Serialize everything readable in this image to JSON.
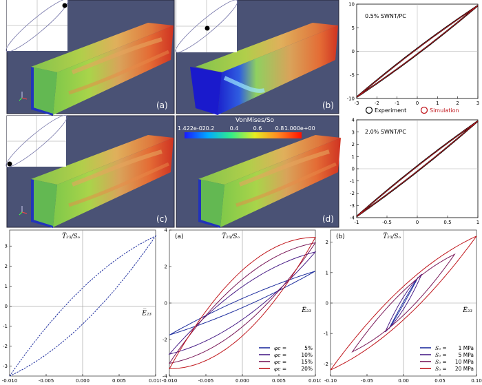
{
  "fem_panels": [
    {
      "label": "(a)",
      "marker": "top-right"
    },
    {
      "label": "(b)",
      "marker": "center"
    },
    {
      "label": "(c)",
      "marker": "bottom-left"
    },
    {
      "label": "(d)",
      "marker": "none"
    }
  ],
  "colorbar": {
    "title": "VonMises/So",
    "ticks": [
      "1.422e-02",
      "0.2",
      "0.4",
      "0.6",
      "0.8",
      "1.000e+00"
    ],
    "colors": [
      "#1a1aff",
      "#00aaff",
      "#33ee88",
      "#e6ee22",
      "#ff8822",
      "#ff1100"
    ]
  },
  "colors": {
    "background": "#4a5275",
    "experiment": "#111111",
    "simulation": "#c0161c",
    "dark_blue": "#1f2f9f",
    "red": "#c0161c"
  },
  "chart_data": [
    {
      "id": "swnt-0.5",
      "type": "line",
      "title": "0.5% SWNT/PC",
      "xlim": [
        -3,
        3
      ],
      "ylim": [
        -10,
        10
      ],
      "xticks": [
        "-3",
        "-2",
        "-1",
        "0",
        "1",
        "2",
        "3"
      ],
      "yticks": [
        "10",
        "5",
        "0",
        "-5",
        "-10"
      ],
      "legend": [
        "Experiment",
        "Simulation"
      ],
      "legend_placement": "bottom",
      "series": [
        {
          "name": "Experiment",
          "loop": {
            "amp_x": 3,
            "amp_y": 9.7,
            "width": 0.6
          }
        },
        {
          "name": "Simulation",
          "loop": {
            "amp_x": 3,
            "amp_y": 9.7,
            "width": 0.55
          }
        }
      ]
    },
    {
      "id": "swnt-2.0",
      "type": "line",
      "title": "2.0% SWNT/PC",
      "xlim": [
        -1,
        1
      ],
      "ylim": [
        -4,
        4
      ],
      "xticks": [
        "-1",
        "-0.5",
        "0",
        "0.5",
        "1"
      ],
      "yticks": [
        "4",
        "3",
        "2",
        "1",
        "0",
        "-1",
        "-2",
        "-3",
        "-4"
      ],
      "series": [
        {
          "name": "Experiment",
          "loop": {
            "amp_x": 1,
            "amp_y": 3.9,
            "width": 0.22
          }
        },
        {
          "name": "Simulation",
          "loop": {
            "amp_x": 1,
            "amp_y": 3.9,
            "width": 0.2
          }
        }
      ]
    },
    {
      "id": "hysteresis-single",
      "type": "line",
      "xlabel": "E̅₂₃",
      "ylabel": "T̅₂₃/Sₒ",
      "xlim": [
        -0.01,
        0.01
      ],
      "ylim": [
        -3.5,
        3.8
      ],
      "xticks": [
        "-0.010",
        "-0.005",
        "0.000",
        "0.005",
        "0.010"
      ],
      "yticks": [
        "3",
        "2",
        "1",
        "0",
        "-1",
        "-2",
        "-3"
      ],
      "series": [
        {
          "name": "",
          "loop": {
            "amp_x": 0.01,
            "amp_y": 3.5,
            "width": 0.9
          }
        }
      ]
    },
    {
      "id": "hysteresis-phi",
      "type": "line",
      "panel_label": "(a)",
      "xlabel": "E̅₂₃",
      "ylabel": "T̅₂₃/Sₒ",
      "xlim": [
        -0.01,
        0.01
      ],
      "ylim": [
        -4,
        4
      ],
      "xticks": [
        "-0.010",
        "-0.005",
        "0.000",
        "0.005",
        "0.010"
      ],
      "yticks": [
        "4",
        "2",
        "0",
        "-2",
        "-4"
      ],
      "legend_placement": "bottom-right",
      "series": [
        {
          "name": "φc = 5%",
          "legend_var": "φc",
          "legend_value": "5%",
          "color": "#1f2f9f",
          "loop": {
            "amp_x": 0.01,
            "amp_y": 1.75,
            "width": 0.25
          }
        },
        {
          "name": "φc = 10%",
          "legend_var": "φc",
          "legend_value": "10%",
          "color": "#4a1f88",
          "loop": {
            "amp_x": 0.01,
            "amp_y": 2.8,
            "width": 0.9
          }
        },
        {
          "name": "φc = 15%",
          "legend_var": "φc",
          "legend_value": "15%",
          "color": "#7a1a5a",
          "loop": {
            "amp_x": 0.01,
            "amp_y": 3.3,
            "width": 1.3
          }
        },
        {
          "name": "φc = 20%",
          "legend_var": "φc",
          "legend_value": "20%",
          "color": "#c0161c",
          "loop": {
            "amp_x": 0.01,
            "amp_y": 3.6,
            "width": 1.8
          }
        }
      ]
    },
    {
      "id": "hysteresis-so",
      "type": "line",
      "panel_label": "(b)",
      "xlabel": "E̅₂₃",
      "ylabel": "T̅₂₃/Sₒ",
      "xlim": [
        -0.1,
        0.1
      ],
      "ylim": [
        -2.4,
        2.4
      ],
      "xticks": [
        "-0.10",
        "-0.05",
        "0.00",
        "0.05",
        "0.10"
      ],
      "yticks": [
        "2",
        "1",
        "0",
        "-1",
        "-2"
      ],
      "legend_placement": "bottom-right",
      "series": [
        {
          "name": "Sₒ = 1 MPa",
          "legend_var": "Sₒ",
          "legend_value": "1 MPa",
          "color": "#1f2f9f",
          "loop": {
            "amp_x": 0.02,
            "amp_y": 0.85,
            "width": 0.04
          }
        },
        {
          "name": "Sₒ = 5 MPa",
          "legend_var": "Sₒ",
          "legend_value": "5 MPa",
          "color": "#4a1f88",
          "loop": {
            "amp_x": 0.025,
            "amp_y": 0.95,
            "width": 0.2
          }
        },
        {
          "name": "Sₒ = 10 MPa",
          "legend_var": "Sₒ",
          "legend_value": "10 MPa",
          "color": "#7a1a5a",
          "loop": {
            "amp_x": 0.07,
            "amp_y": 1.6,
            "width": 0.4
          }
        },
        {
          "name": "Sₒ = 20 MPa",
          "legend_var": "Sₒ",
          "legend_value": "20 MPa",
          "color": "#c0161c",
          "loop": {
            "amp_x": 0.1,
            "amp_y": 2.2,
            "width": 0.55
          }
        }
      ]
    }
  ]
}
